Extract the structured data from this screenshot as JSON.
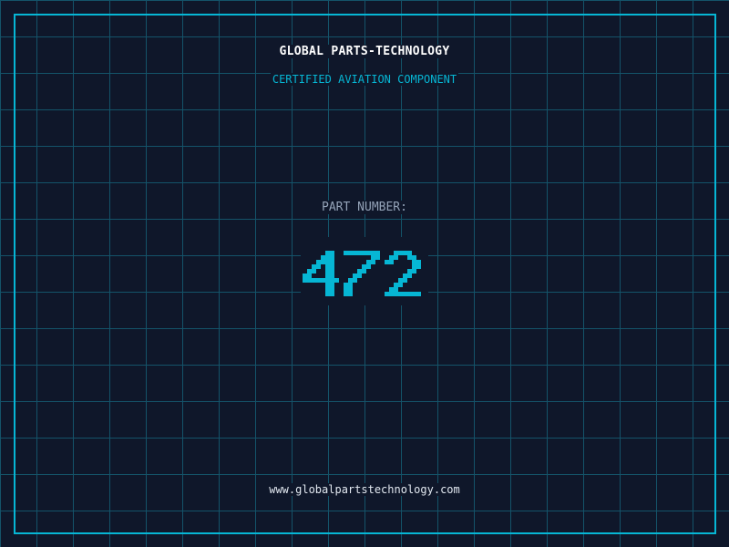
{
  "header": {
    "title": "GLOBAL PARTS-TECHNOLOGY",
    "subtitle": "CERTIFIED AVIATION COMPONENT"
  },
  "part": {
    "label": "PART NUMBER:",
    "number": "472"
  },
  "footer": {
    "url": "www.globalpartstechnology.com"
  },
  "colors": {
    "background": "#0f172a",
    "accent": "#06b6d4",
    "grid": "#155e75",
    "label": "#94a3b8"
  }
}
